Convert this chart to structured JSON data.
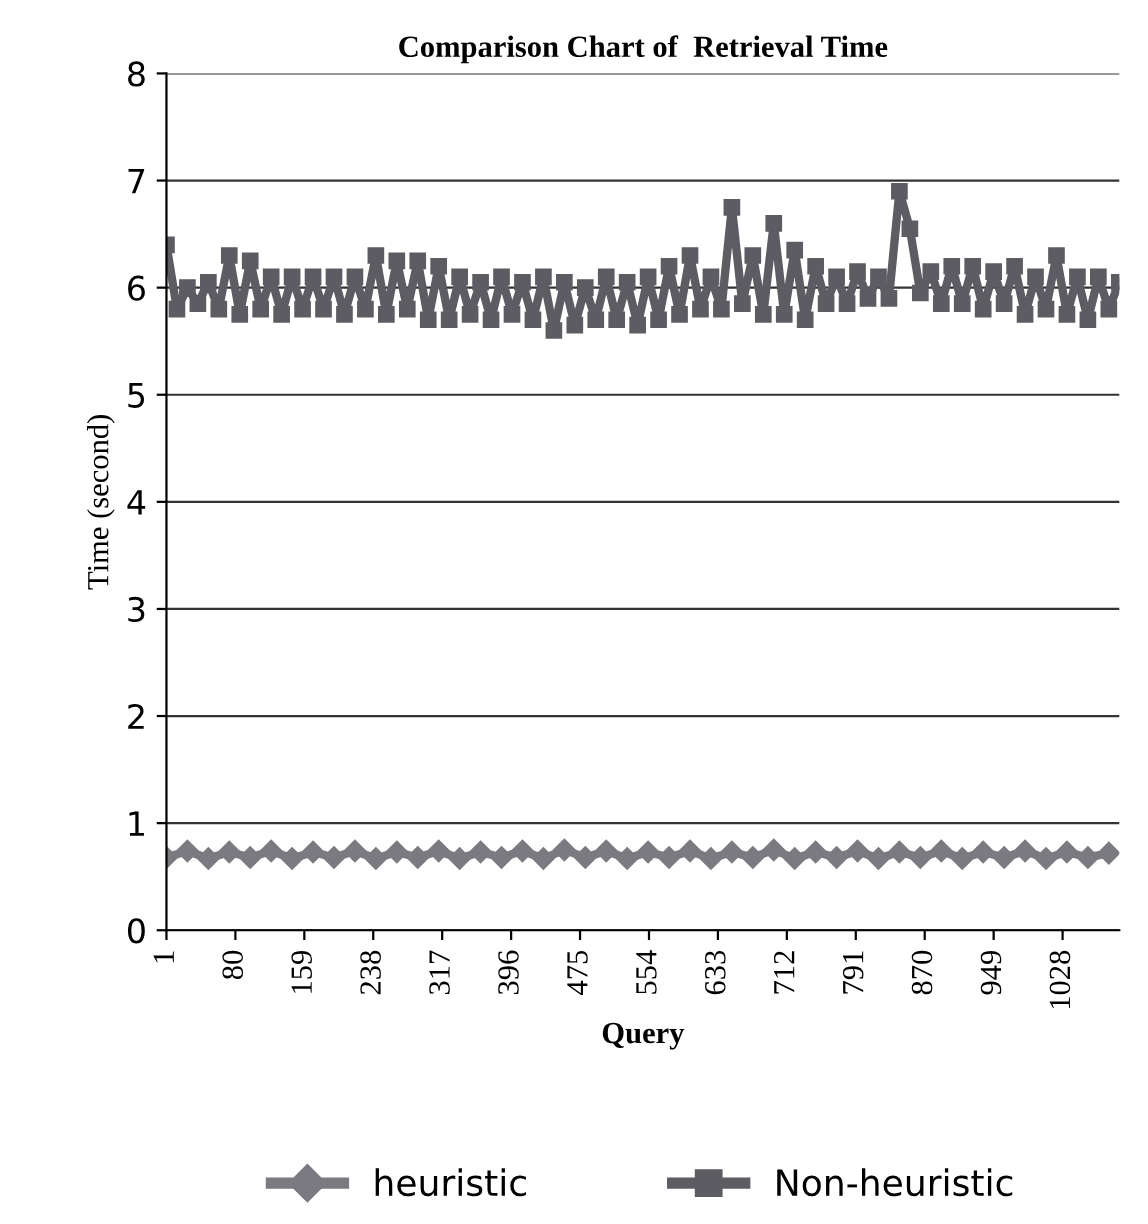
{
  "chart_data": {
    "type": "line",
    "title": "Comparison Chart of  Retrieval Time",
    "xlabel": "Query",
    "ylabel": "Time (second)",
    "xlim": [
      1,
      1093
    ],
    "xticks": [
      1,
      80,
      159,
      238,
      317,
      396,
      475,
      554,
      633,
      712,
      791,
      870,
      949,
      1028
    ],
    "ylim": [
      0,
      8
    ],
    "yticks": [
      0,
      1,
      2,
      3,
      4,
      5,
      6,
      7,
      8
    ],
    "grid": "y",
    "legend": "bottom",
    "line_style": "solid",
    "series": [
      {
        "name": "heuristic",
        "color": "#7a7a80",
        "marker": "diamond",
        "x": [
          1,
          25,
          49,
          73,
          97,
          121,
          145,
          169,
          193,
          217,
          241,
          265,
          289,
          313,
          337,
          361,
          385,
          409,
          433,
          457,
          481,
          505,
          529,
          553,
          577,
          601,
          625,
          649,
          673,
          697,
          721,
          745,
          769,
          793,
          817,
          841,
          865,
          889,
          913,
          937,
          961,
          985,
          1009,
          1033,
          1057,
          1081
        ],
        "values": [
          0.68,
          0.74,
          0.67,
          0.73,
          0.68,
          0.74,
          0.67,
          0.73,
          0.68,
          0.74,
          0.67,
          0.73,
          0.68,
          0.74,
          0.67,
          0.73,
          0.68,
          0.74,
          0.67,
          0.75,
          0.68,
          0.74,
          0.67,
          0.73,
          0.68,
          0.74,
          0.67,
          0.73,
          0.68,
          0.75,
          0.67,
          0.73,
          0.68,
          0.74,
          0.67,
          0.73,
          0.68,
          0.74,
          0.67,
          0.73,
          0.68,
          0.74,
          0.67,
          0.73,
          0.68,
          0.72
        ]
      },
      {
        "name": "Non-heuristic",
        "color": "#5c5c62",
        "marker": "square",
        "x": [
          1,
          13,
          25,
          37,
          49,
          61,
          73,
          85,
          97,
          109,
          121,
          133,
          145,
          157,
          169,
          181,
          193,
          205,
          217,
          229,
          241,
          253,
          265,
          277,
          289,
          301,
          313,
          325,
          337,
          349,
          361,
          373,
          385,
          397,
          409,
          421,
          433,
          445,
          457,
          469,
          481,
          493,
          505,
          517,
          529,
          541,
          553,
          565,
          577,
          589,
          601,
          613,
          625,
          637,
          649,
          661,
          673,
          685,
          697,
          709,
          721,
          733,
          745,
          757,
          769,
          781,
          793,
          805,
          817,
          829,
          841,
          853,
          865,
          877,
          889,
          901,
          913,
          925,
          937,
          949,
          961,
          973,
          985,
          997,
          1009,
          1021,
          1033,
          1045,
          1057,
          1069,
          1081,
          1093
        ],
        "values": [
          6.4,
          5.8,
          6.0,
          5.85,
          6.05,
          5.8,
          6.3,
          5.75,
          6.25,
          5.8,
          6.1,
          5.75,
          6.1,
          5.8,
          6.1,
          5.8,
          6.1,
          5.75,
          6.1,
          5.8,
          6.3,
          5.75,
          6.25,
          5.8,
          6.25,
          5.7,
          6.2,
          5.7,
          6.1,
          5.75,
          6.05,
          5.7,
          6.1,
          5.75,
          6.05,
          5.7,
          6.1,
          5.6,
          6.05,
          5.65,
          6.0,
          5.7,
          6.1,
          5.7,
          6.05,
          5.65,
          6.1,
          5.7,
          6.2,
          5.75,
          6.3,
          5.8,
          6.1,
          5.8,
          6.75,
          5.85,
          6.3,
          5.75,
          6.6,
          5.75,
          6.35,
          5.7,
          6.2,
          5.85,
          6.1,
          5.85,
          6.15,
          5.9,
          6.1,
          5.9,
          6.9,
          6.55,
          5.95,
          6.15,
          5.85,
          6.2,
          5.85,
          6.2,
          5.8,
          6.15,
          5.85,
          6.2,
          5.75,
          6.1,
          5.8,
          6.3,
          5.75,
          6.1,
          5.7,
          6.1,
          5.8,
          6.05
        ]
      }
    ]
  }
}
